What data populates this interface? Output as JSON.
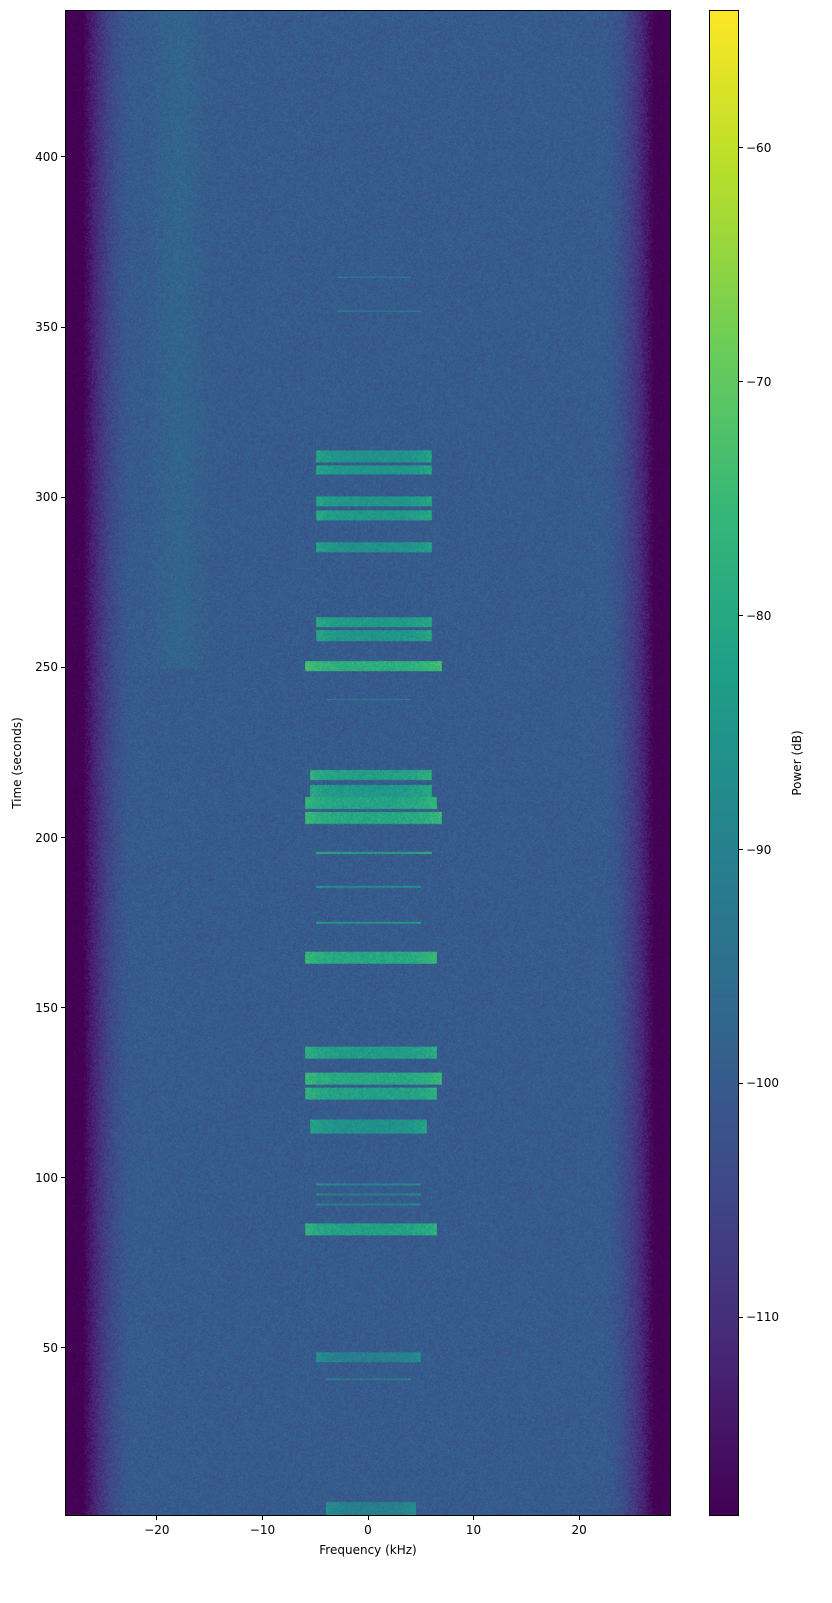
{
  "chart_data": {
    "type": "heatmap",
    "colormap": "viridis",
    "xlabel": "Frequency (kHz)",
    "ylabel": "Time (seconds)",
    "colorbar_label": "Power (dB)",
    "xlim": [
      -28.7,
      28.7
    ],
    "ylim": [
      0.6,
      443.2
    ],
    "clim": [
      -118.5,
      -54.1
    ],
    "xticks": [
      -20,
      -10,
      0,
      10,
      20
    ],
    "xtick_labels": [
      "−20",
      "−10",
      "0",
      "10",
      "20"
    ],
    "yticks": [
      50,
      100,
      150,
      200,
      250,
      300,
      350,
      400
    ],
    "ytick_labels": [
      "50",
      "100",
      "150",
      "200",
      "250",
      "300",
      "350",
      "400"
    ],
    "cticks": [
      -60,
      -70,
      -80,
      -90,
      -100,
      -110
    ],
    "ctick_labels": [
      "−60",
      "−70",
      "−80",
      "−90",
      "−100",
      "−110"
    ],
    "noise_floor_db": -100,
    "band_edge_db": -118,
    "passband_khz": [
      -26,
      26
    ],
    "bursts": [
      {
        "t": [
          0.5,
          4.5
        ],
        "f": [
          -4,
          4.5
        ],
        "db": -91
      },
      {
        "t": [
          40.4,
          40.9
        ],
        "f": [
          -4,
          4
        ],
        "db": -94
      },
      {
        "t": [
          45.8,
          48.6
        ],
        "f": [
          -5,
          5
        ],
        "db": -91
      },
      {
        "t": [
          83,
          86.5
        ],
        "f": [
          -6,
          6.5
        ],
        "db": -82
      },
      {
        "t": [
          91.8,
          92.3
        ],
        "f": [
          -5,
          5
        ],
        "db": -92
      },
      {
        "t": [
          94.8,
          95.3
        ],
        "f": [
          -5,
          5
        ],
        "db": -92
      },
      {
        "t": [
          97.8,
          98.3
        ],
        "f": [
          -5,
          5
        ],
        "db": -90
      },
      {
        "t": [
          113,
          117
        ],
        "f": [
          -5.5,
          5.5
        ],
        "db": -86
      },
      {
        "t": [
          123,
          126.5
        ],
        "f": [
          -6,
          6.5
        ],
        "db": -82
      },
      {
        "t": [
          127.5,
          131
        ],
        "f": [
          -6,
          7
        ],
        "db": -80
      },
      {
        "t": [
          135,
          138.5
        ],
        "f": [
          -6,
          6.5
        ],
        "db": -83
      },
      {
        "t": [
          163,
          166.5
        ],
        "f": [
          -6,
          6.5
        ],
        "db": -80
      },
      {
        "t": [
          174.8,
          175.3
        ],
        "f": [
          -5,
          5
        ],
        "db": -86
      },
      {
        "t": [
          185.3,
          185.8
        ],
        "f": [
          -5,
          5
        ],
        "db": -88
      },
      {
        "t": [
          195.3,
          195.8
        ],
        "f": [
          -5,
          6
        ],
        "db": -82
      },
      {
        "t": [
          204,
          207.5
        ],
        "f": [
          -6,
          7
        ],
        "db": -80
      },
      {
        "t": [
          208.5,
          212
        ],
        "f": [
          -6,
          6.5
        ],
        "db": -81
      },
      {
        "t": [
          212,
          215.5
        ],
        "f": [
          -5.5,
          6
        ],
        "db": -84
      },
      {
        "t": [
          217,
          220
        ],
        "f": [
          -5.5,
          6
        ],
        "db": -82
      },
      {
        "t": [
          240.5,
          241
        ],
        "f": [
          -4,
          4
        ],
        "db": -92
      },
      {
        "t": [
          249,
          252
        ],
        "f": [
          -6,
          7
        ],
        "db": -78
      },
      {
        "t": [
          258,
          261
        ],
        "f": [
          -5,
          6
        ],
        "db": -85
      },
      {
        "t": [
          262,
          265
        ],
        "f": [
          -5,
          6
        ],
        "db": -84
      },
      {
        "t": [
          284,
          287
        ],
        "f": [
          -5,
          6
        ],
        "db": -86
      },
      {
        "t": [
          293.5,
          296.5
        ],
        "f": [
          -5,
          6
        ],
        "db": -84
      },
      {
        "t": [
          297.5,
          300.5
        ],
        "f": [
          -5,
          6
        ],
        "db": -85
      },
      {
        "t": [
          307,
          309.5
        ],
        "f": [
          -5,
          6
        ],
        "db": -85
      },
      {
        "t": [
          310.5,
          314
        ],
        "f": [
          -5,
          6
        ],
        "db": -86
      },
      {
        "t": [
          354.8,
          355.3
        ],
        "f": [
          -3,
          5
        ],
        "db": -90
      },
      {
        "t": [
          364.8,
          365.3
        ],
        "f": [
          -3,
          4
        ],
        "db": -92
      }
    ]
  }
}
